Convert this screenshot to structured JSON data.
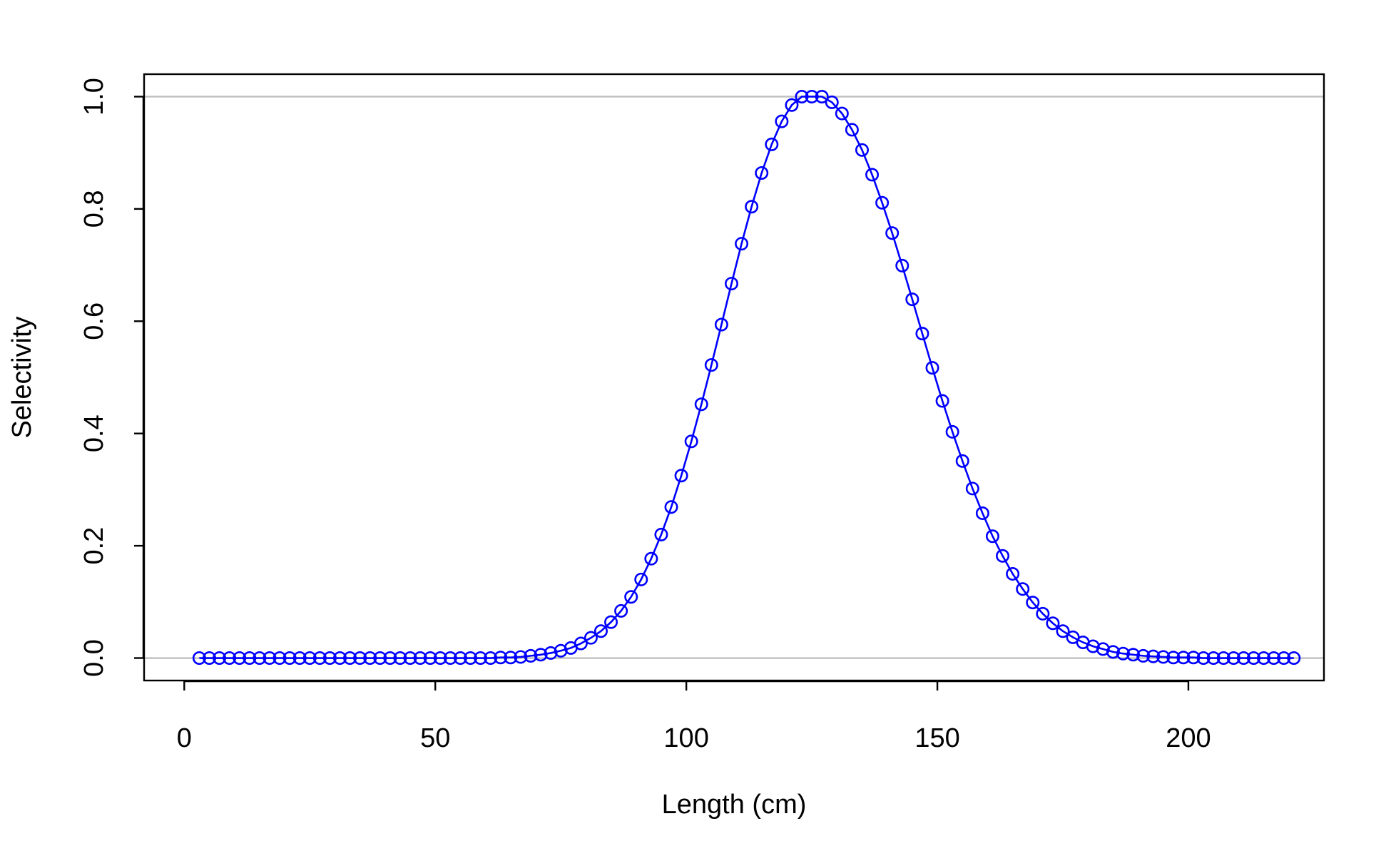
{
  "chart_data": {
    "type": "line",
    "title": "",
    "xlabel": "Length (cm)",
    "ylabel": "Selectivity",
    "xlim": [
      -8,
      227
    ],
    "ylim": [
      -0.04,
      1.04
    ],
    "xticks": [
      0,
      50,
      100,
      150,
      200
    ],
    "xtick_labels": [
      "0",
      "50",
      "100",
      "150",
      "200"
    ],
    "yticks": [
      0.0,
      0.2,
      0.4,
      0.6,
      0.8,
      1.0
    ],
    "ytick_labels": [
      "0.0",
      "0.2",
      "0.4",
      "0.6",
      "0.8",
      "1.0"
    ],
    "reference_lines_y": [
      0,
      1
    ],
    "grid": false,
    "legend": "none",
    "series": [
      {
        "style": "line with open circle markers",
        "x": [
          3,
          5,
          7,
          9,
          11,
          13,
          15,
          17,
          19,
          21,
          23,
          25,
          27,
          29,
          31,
          33,
          35,
          37,
          39,
          41,
          43,
          45,
          47,
          49,
          51,
          53,
          55,
          57,
          59,
          61,
          63,
          65,
          67,
          69,
          71,
          73,
          75,
          77,
          79,
          81,
          83,
          85,
          87,
          89,
          91,
          93,
          95,
          97,
          99,
          101,
          103,
          105,
          107,
          109,
          111,
          113,
          115,
          117,
          119,
          121,
          123,
          125,
          127,
          129,
          131,
          133,
          135,
          137,
          139,
          141,
          143,
          145,
          147,
          149,
          151,
          153,
          155,
          157,
          159,
          161,
          163,
          165,
          167,
          169,
          171,
          173,
          175,
          177,
          179,
          181,
          183,
          185,
          187,
          189,
          191,
          193,
          195,
          197,
          199,
          201,
          203,
          205,
          207,
          209,
          211,
          213,
          215,
          217,
          219,
          221
        ],
        "values": [
          0,
          0,
          0,
          0,
          0,
          0,
          0,
          0,
          0,
          0,
          0,
          0,
          0,
          0,
          0,
          0,
          0,
          0,
          0,
          0,
          0,
          0,
          0,
          0,
          0,
          0,
          0,
          0,
          0,
          0,
          0.001,
          0.001,
          0.002,
          0.004,
          0.006,
          0.009,
          0.013,
          0.018,
          0.026,
          0.036,
          0.048,
          0.064,
          0.084,
          0.109,
          0.14,
          0.177,
          0.22,
          0.269,
          0.325,
          0.386,
          0.452,
          0.522,
          0.594,
          0.667,
          0.738,
          0.804,
          0.864,
          0.915,
          0.956,
          0.985,
          1.0,
          1.0,
          1.0,
          0.99,
          0.97,
          0.941,
          0.905,
          0.861,
          0.811,
          0.757,
          0.699,
          0.639,
          0.578,
          0.517,
          0.458,
          0.403,
          0.351,
          0.302,
          0.258,
          0.217,
          0.182,
          0.15,
          0.123,
          0.099,
          0.079,
          0.062,
          0.048,
          0.037,
          0.028,
          0.021,
          0.016,
          0.011,
          0.008,
          0.006,
          0.004,
          0.003,
          0.002,
          0.001,
          0.001,
          0.001,
          0,
          0,
          0,
          0,
          0,
          0,
          0,
          0,
          0,
          0
        ]
      }
    ]
  },
  "colors": {
    "series": "#0000ff",
    "reference_line": "#bebebe",
    "axis": "#000000",
    "background": "#ffffff"
  }
}
